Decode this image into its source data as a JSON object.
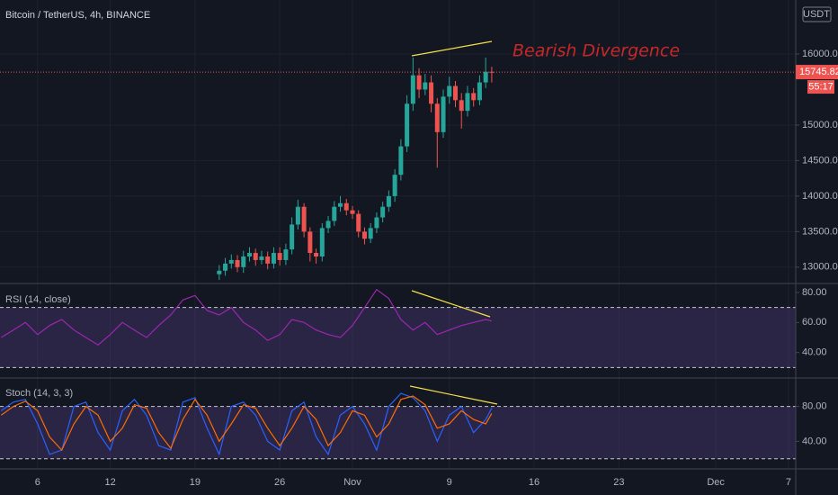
{
  "chart_data": [
    {
      "type": "candlestick",
      "title": "Bitcoin / TetherUS, 4h, BINANCE",
      "annotation": "Bearish Divergence",
      "currency": "USDT",
      "last_price_label": "15745.82",
      "countdown": "55:17",
      "up_color": "#26a69a",
      "down_color": "#ef5350",
      "grid": true,
      "x": [
        15,
        15.5,
        16,
        16.5,
        17,
        17.5,
        18,
        18.5,
        19,
        19.5,
        20,
        20.5,
        21,
        21.5,
        22,
        22.5,
        23,
        23.5,
        24,
        24.5,
        25,
        25.5,
        26,
        26.5,
        27,
        27.5,
        28,
        28.5,
        29,
        29.5,
        30,
        30.5,
        31,
        31.5,
        32,
        32.5,
        33,
        33.5,
        34,
        34.5,
        35,
        35.5,
        36,
        36.5,
        37,
        37.5
      ],
      "open": [
        12900,
        12950,
        13050,
        13100,
        13000,
        13150,
        13200,
        13100,
        13150,
        13050,
        13200,
        13100,
        13250,
        13600,
        13850,
        13500,
        13200,
        13150,
        13550,
        13650,
        13850,
        13900,
        13800,
        13750,
        13500,
        13400,
        13550,
        13700,
        13850,
        14000,
        14300,
        14700,
        15300,
        15700,
        15500,
        15600,
        15300,
        14900,
        15400,
        15550,
        15350,
        15200,
        15450,
        15350,
        15600,
        15750
      ],
      "high": [
        13030,
        13130,
        13180,
        13170,
        13230,
        13280,
        13260,
        13230,
        13220,
        13280,
        13280,
        13330,
        13700,
        13950,
        13900,
        13560,
        13260,
        13620,
        13720,
        13930,
        14000,
        13960,
        13860,
        13800,
        13560,
        13620,
        13770,
        13920,
        14080,
        14380,
        14800,
        15420,
        15950,
        15800,
        15720,
        15700,
        15380,
        15500,
        15680,
        15620,
        15450,
        15550,
        15520,
        15700,
        15950,
        15820
      ],
      "low": [
        12820,
        12880,
        12980,
        12930,
        12920,
        13080,
        13020,
        13040,
        12970,
        12980,
        13020,
        13030,
        13180,
        13530,
        13420,
        13080,
        13050,
        13080,
        13480,
        13580,
        13780,
        13730,
        13680,
        13420,
        13320,
        13340,
        13480,
        13630,
        13780,
        13920,
        14220,
        14620,
        15200,
        15380,
        15420,
        15180,
        14400,
        14820,
        15300,
        15250,
        14950,
        15120,
        15260,
        15280,
        15520,
        15600
      ],
      "close": [
        12950,
        13050,
        13100,
        13000,
        13150,
        13200,
        13100,
        13150,
        13050,
        13200,
        13100,
        13250,
        13600,
        13850,
        13500,
        13200,
        13150,
        13550,
        13650,
        13850,
        13900,
        13800,
        13750,
        13500,
        13400,
        13550,
        13700,
        13850,
        14000,
        14300,
        14700,
        15300,
        15700,
        15500,
        15600,
        15300,
        14900,
        15400,
        15550,
        15350,
        15200,
        15450,
        15350,
        15600,
        15750,
        15745.82
      ],
      "xlim": [
        -3.1,
        62.6
      ],
      "xticks": [
        {
          "value": 0,
          "label": "6"
        },
        {
          "value": 6,
          "label": "12"
        },
        {
          "value": 13,
          "label": "19"
        },
        {
          "value": 20,
          "label": "26"
        },
        {
          "value": 26,
          "label": "Nov"
        },
        {
          "value": 34,
          "label": "9"
        },
        {
          "value": 41,
          "label": "16"
        },
        {
          "value": 48,
          "label": "23"
        },
        {
          "value": 56,
          "label": "Dec"
        },
        {
          "value": 62,
          "label": "7"
        }
      ],
      "ylim": [
        12770,
        16760
      ],
      "yticks": [
        {
          "value": 13000,
          "label": "13000.00"
        },
        {
          "value": 13500,
          "label": "13500.00"
        },
        {
          "value": 14000,
          "label": "14000.00"
        },
        {
          "value": 14500,
          "label": "14500.00"
        },
        {
          "value": 15000,
          "label": "15000.00"
        },
        {
          "value": 16000,
          "label": "16000.00"
        }
      ]
    },
    {
      "type": "line",
      "title": "RSI (14, close)",
      "color": "#9c27b0",
      "x": [
        -3,
        -2,
        -1,
        0,
        1,
        2,
        3,
        4,
        5,
        6,
        7,
        8,
        9,
        10,
        11,
        12,
        13,
        14,
        15,
        16,
        17,
        18,
        19,
        20,
        21,
        22,
        23,
        24,
        25,
        26,
        27,
        28,
        29,
        30,
        31,
        32,
        33,
        34,
        35,
        36,
        37,
        37.5
      ],
      "series": [
        {
          "color": "#9c27b0",
          "values": [
            50,
            55,
            60,
            52,
            58,
            62,
            55,
            50,
            45,
            52,
            60,
            55,
            50,
            58,
            65,
            75,
            78,
            68,
            65,
            70,
            60,
            55,
            48,
            52,
            62,
            60,
            55,
            52,
            50,
            58,
            70,
            82,
            76,
            62,
            55,
            60,
            52,
            55,
            58,
            60,
            62,
            61
          ]
        }
      ],
      "bands": [
        30,
        70
      ],
      "ylim": [
        23,
        86
      ],
      "yticks": [
        {
          "value": 40,
          "label": "40.00"
        },
        {
          "value": 60,
          "label": "60.00"
        },
        {
          "value": 80,
          "label": "80.00"
        }
      ]
    },
    {
      "type": "line",
      "title": "Stoch (14, 3, 3)",
      "x": [
        -3,
        -2,
        -1,
        0,
        1,
        2,
        3,
        4,
        5,
        6,
        7,
        8,
        9,
        10,
        11,
        12,
        13,
        14,
        15,
        16,
        17,
        18,
        19,
        20,
        21,
        22,
        23,
        24,
        25,
        26,
        27,
        28,
        29,
        30,
        31,
        32,
        33,
        34,
        35,
        36,
        37,
        37.5
      ],
      "series": [
        {
          "color": "#2962ff",
          "values": [
            75,
            85,
            88,
            60,
            25,
            30,
            80,
            85,
            50,
            30,
            75,
            88,
            70,
            35,
            30,
            85,
            90,
            55,
            25,
            80,
            85,
            70,
            40,
            30,
            75,
            85,
            45,
            25,
            70,
            80,
            60,
            30,
            80,
            95,
            90,
            75,
            40,
            70,
            80,
            50,
            65,
            78
          ]
        },
        {
          "color": "#ff6d00",
          "values": [
            70,
            80,
            86,
            75,
            45,
            30,
            60,
            80,
            70,
            40,
            55,
            82,
            78,
            50,
            32,
            65,
            88,
            70,
            40,
            60,
            82,
            78,
            55,
            35,
            55,
            80,
            65,
            35,
            50,
            75,
            70,
            45,
            60,
            88,
            92,
            82,
            55,
            60,
            75,
            65,
            60,
            72
          ]
        }
      ],
      "bands": [
        20,
        80
      ],
      "ylim": [
        8.4,
        112.6
      ],
      "yticks": [
        {
          "value": 40,
          "label": "40.00"
        },
        {
          "value": 80,
          "label": "80.00"
        }
      ]
    }
  ]
}
